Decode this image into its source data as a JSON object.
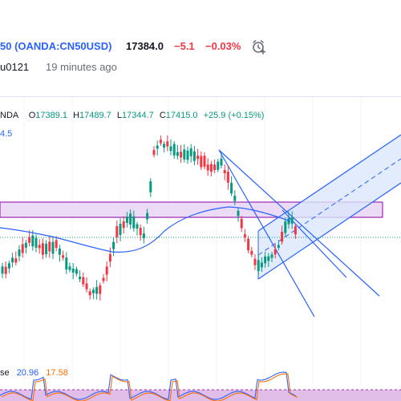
{
  "header": {
    "symbol_prefix": "50",
    "symbol_code": "(OANDA:CN50USD)",
    "price": "17384.0",
    "change": "−5.1",
    "change_pct": "−0.03%",
    "author": "u0121",
    "time_ago": "19 minutes ago"
  },
  "chart_legend": {
    "source": "NDA",
    "open_label": "O",
    "open": "17389.1",
    "high_label": "H",
    "high": "17489.7",
    "low_label": "L",
    "low": "17344.7",
    "close_label": "C",
    "close": "17415.0",
    "change": "+25.9 (+0.15%)",
    "ma_value": "4.5"
  },
  "oscillator": {
    "label": "se",
    "value1": "20.96",
    "value2": "17.58"
  },
  "colors": {
    "up": "#089981",
    "down": "#f23645",
    "accent": "#2962ff",
    "zone_fill": "#e9d5f5",
    "zone_border": "#9c27b0",
    "channel_fill": "#dbe7fb",
    "osc_band": "#e1bee7"
  },
  "icons": {
    "alert": "alarm-clock-plus-icon"
  }
}
